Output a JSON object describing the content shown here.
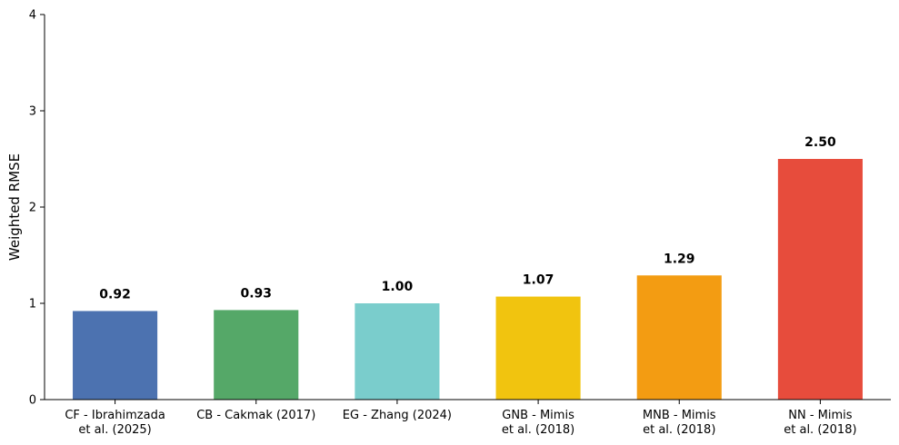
{
  "chart_data": {
    "type": "bar",
    "categories": [
      [
        "CF - Ibrahimzada",
        "et al. (2025)"
      ],
      [
        "CB - Cakmak (2017)"
      ],
      [
        "EG - Zhang (2024)"
      ],
      [
        "GNB - Mimis",
        "et al. (2018)"
      ],
      [
        "MNB - Mimis",
        "et al. (2018)"
      ],
      [
        "NN - Mimis",
        "et al. (2018)"
      ]
    ],
    "values": [
      0.92,
      0.93,
      1.0,
      1.07,
      1.29,
      2.5
    ],
    "value_labels": [
      "0.92",
      "0.93",
      "1.00",
      "1.07",
      "1.29",
      "2.50"
    ],
    "colors": [
      "#4c72b0",
      "#55a868",
      "#7acdcc",
      "#f1c40f",
      "#f39c12",
      "#e74c3c"
    ],
    "title": "",
    "xlabel": "",
    "ylabel": "Weighted RMSE",
    "ylim": [
      0,
      4
    ],
    "yticks": [
      0,
      1,
      2,
      3,
      4
    ],
    "grid": false,
    "legend": "none"
  }
}
